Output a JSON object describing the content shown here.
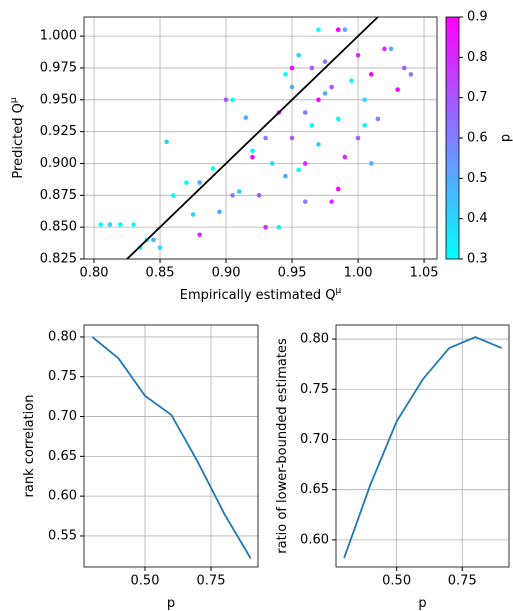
{
  "chart_data": [
    {
      "type": "scatter",
      "xlabel": "Empirically estimated Q",
      "xlabel_sup": "μ",
      "ylabel": "Predicted Q",
      "ylabel_sup": "μ",
      "xlim": [
        0.7924,
        1.0598
      ],
      "ylim": [
        0.825,
        1.015
      ],
      "xticks": [
        {
          "value": 0.8,
          "label": "0.80"
        },
        0.85,
        {
          "value": 0.9,
          "label": "0.90"
        },
        0.95,
        {
          "value": 1.0,
          "label": "1.00"
        },
        1.05
      ],
      "yticks": [
        0.825,
        {
          "value": 0.85,
          "label": "0.850"
        },
        0.875,
        {
          "value": 0.9,
          "label": "0.900"
        },
        0.925,
        {
          "value": 0.95,
          "label": "0.950"
        },
        0.975,
        {
          "value": 1.0,
          "label": "1.000"
        }
      ],
      "grid": true,
      "x": [
        0.805,
        0.812,
        0.82,
        0.83,
        0.84,
        0.845,
        0.835,
        0.85,
        0.855,
        0.86,
        0.87,
        0.88,
        0.875,
        0.88,
        0.89,
        0.895,
        0.9,
        0.905,
        0.905,
        0.91,
        0.915,
        0.92,
        0.93,
        0.925,
        0.935,
        0.94,
        0.93,
        0.945,
        0.95,
        0.955,
        0.96,
        0.95,
        0.945,
        0.96,
        0.965,
        0.97,
        0.975,
        0.97,
        0.98,
        0.985,
        0.99,
        0.995,
        1.0,
        1.005,
        1.01,
        1.015,
        1.02,
        1.025,
        1.03,
        1.035,
        1.04,
        0.97,
        0.985,
        0.98,
        0.99,
        1.0,
        0.96,
        0.955,
        1.01,
        0.94,
        0.92,
        0.985,
        0.975,
        1.005,
        0.965,
        0.95
      ],
      "y": [
        0.852,
        0.852,
        0.852,
        0.852,
        0.84,
        0.84,
        0.834,
        0.834,
        0.917,
        0.875,
        0.885,
        0.885,
        0.86,
        0.844,
        0.896,
        0.862,
        0.95,
        0.95,
        0.875,
        0.878,
        0.936,
        0.91,
        0.92,
        0.875,
        0.9,
        0.85,
        0.85,
        0.97,
        0.96,
        0.985,
        0.94,
        0.92,
        0.89,
        0.9,
        0.93,
        0.95,
        0.98,
        0.915,
        0.96,
        0.88,
        1.005,
        0.965,
        0.985,
        0.95,
        0.97,
        0.935,
        0.99,
        0.99,
        0.958,
        0.975,
        0.97,
        1.005,
        1.005,
        0.87,
        0.905,
        0.92,
        0.87,
        0.895,
        0.9,
        0.94,
        0.905,
        0.935,
        0.955,
        0.93,
        0.975,
        0.975
      ],
      "c": [
        0.3,
        0.4,
        0.3,
        0.3,
        0.3,
        0.5,
        0.3,
        0.4,
        0.4,
        0.3,
        0.3,
        0.5,
        0.4,
        0.8,
        0.3,
        0.5,
        0.7,
        0.3,
        0.6,
        0.4,
        0.5,
        0.3,
        0.6,
        0.7,
        0.4,
        0.3,
        0.8,
        0.3,
        0.5,
        0.4,
        0.6,
        0.7,
        0.5,
        0.8,
        0.3,
        0.9,
        0.6,
        0.4,
        0.7,
        0.9,
        0.5,
        0.3,
        0.8,
        0.4,
        0.9,
        0.6,
        0.8,
        0.5,
        0.9,
        0.7,
        0.6,
        0.3,
        0.9,
        0.8,
        0.8,
        0.7,
        0.6,
        0.3,
        0.5,
        0.8,
        0.9,
        0.3,
        0.5,
        0.3,
        0.7,
        0.9
      ],
      "colormap": "cool",
      "reference_line": {
        "x": [
          0.825,
          1.015
        ],
        "y": [
          0.825,
          1.015
        ],
        "color": "#000000"
      },
      "colorbar": {
        "label": "p",
        "clim": [
          0.3,
          0.9
        ],
        "ticks": [
          0.3,
          0.4,
          0.5,
          0.6,
          0.7,
          0.8,
          0.9
        ]
      }
    },
    {
      "type": "line",
      "xlabel": "p",
      "ylabel": "rank correlation",
      "xlim": [
        0.269,
        0.928
      ],
      "ylim": [
        0.511,
        0.815
      ],
      "xticks": [
        {
          "value": 0.5,
          "label": "0.50"
        },
        {
          "value": 0.75,
          "label": "0.75"
        }
      ],
      "yticks": [
        0.55,
        {
          "value": 0.6,
          "label": "0.60"
        },
        0.65,
        {
          "value": 0.7,
          "label": "0.70"
        },
        0.75,
        {
          "value": 0.8,
          "label": "0.80"
        }
      ],
      "grid": true,
      "color": "#1f77b4",
      "x": [
        0.3,
        0.4,
        0.5,
        0.6,
        0.7,
        0.8,
        0.9
      ],
      "values": [
        0.8,
        0.773,
        0.726,
        0.702,
        0.643,
        0.578,
        0.522
      ]
    },
    {
      "type": "line",
      "xlabel": "p",
      "ylabel": "ratio of lower-bounded estimates",
      "xlim": [
        0.269,
        0.928
      ],
      "ylim": [
        0.573,
        0.814
      ],
      "xticks": [
        {
          "value": 0.5,
          "label": "0.50"
        },
        {
          "value": 0.75,
          "label": "0.75"
        }
      ],
      "yticks": [
        {
          "value": 0.6,
          "label": "0.60"
        },
        0.65,
        {
          "value": 0.7,
          "label": "0.70"
        },
        0.75,
        {
          "value": 0.8,
          "label": "0.80"
        }
      ],
      "grid": true,
      "color": "#1f77b4",
      "x": [
        0.3,
        0.4,
        0.5,
        0.6,
        0.7,
        0.8,
        0.9
      ],
      "values": [
        0.582,
        0.655,
        0.718,
        0.76,
        0.791,
        0.802,
        0.791
      ]
    }
  ]
}
